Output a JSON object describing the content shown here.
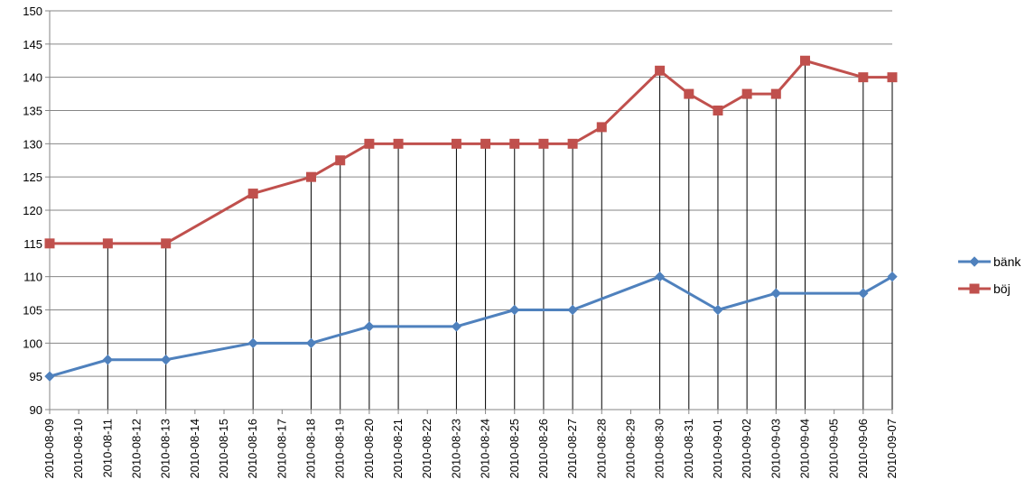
{
  "chart_data": {
    "type": "line",
    "x": [
      "2010-08-09",
      "2010-08-10",
      "2010-08-11",
      "2010-08-12",
      "2010-08-13",
      "2010-08-14",
      "2010-08-15",
      "2010-08-16",
      "2010-08-17",
      "2010-08-18",
      "2010-08-19",
      "2010-08-20",
      "2010-08-21",
      "2010-08-22",
      "2010-08-23",
      "2010-08-24",
      "2010-08-25",
      "2010-08-26",
      "2010-08-27",
      "2010-08-28",
      "2010-08-29",
      "2010-08-30",
      "2010-08-31",
      "2010-09-01",
      "2010-09-02",
      "2010-09-03",
      "2010-09-04",
      "2010-09-05",
      "2010-09-06",
      "2010-09-07"
    ],
    "series": [
      {
        "name": "bänk",
        "color": "#4F81BD",
        "marker": "diamond",
        "points": [
          {
            "x": "2010-08-09",
            "y": 95
          },
          {
            "x": "2010-08-11",
            "y": 97.5
          },
          {
            "x": "2010-08-13",
            "y": 97.5
          },
          {
            "x": "2010-08-16",
            "y": 100
          },
          {
            "x": "2010-08-18",
            "y": 100
          },
          {
            "x": "2010-08-20",
            "y": 102.5
          },
          {
            "x": "2010-08-23",
            "y": 102.5
          },
          {
            "x": "2010-08-25",
            "y": 105
          },
          {
            "x": "2010-08-27",
            "y": 105
          },
          {
            "x": "2010-08-30",
            "y": 110
          },
          {
            "x": "2010-09-01",
            "y": 105
          },
          {
            "x": "2010-09-03",
            "y": 107.5
          },
          {
            "x": "2010-09-06",
            "y": 107.5
          },
          {
            "x": "2010-09-07",
            "y": 110
          }
        ]
      },
      {
        "name": "böj",
        "color": "#C0504D",
        "marker": "square",
        "points": [
          {
            "x": "2010-08-09",
            "y": 115
          },
          {
            "x": "2010-08-11",
            "y": 115
          },
          {
            "x": "2010-08-13",
            "y": 115
          },
          {
            "x": "2010-08-16",
            "y": 122.5
          },
          {
            "x": "2010-08-18",
            "y": 125
          },
          {
            "x": "2010-08-19",
            "y": 127.5
          },
          {
            "x": "2010-08-20",
            "y": 130
          },
          {
            "x": "2010-08-21",
            "y": 130
          },
          {
            "x": "2010-08-23",
            "y": 130
          },
          {
            "x": "2010-08-24",
            "y": 130
          },
          {
            "x": "2010-08-25",
            "y": 130
          },
          {
            "x": "2010-08-26",
            "y": 130
          },
          {
            "x": "2010-08-27",
            "y": 130
          },
          {
            "x": "2010-08-28",
            "y": 132.5
          },
          {
            "x": "2010-08-30",
            "y": 141
          },
          {
            "x": "2010-08-31",
            "y": 137.5
          },
          {
            "x": "2010-09-01",
            "y": 135
          },
          {
            "x": "2010-09-02",
            "y": 137.5
          },
          {
            "x": "2010-09-03",
            "y": 137.5
          },
          {
            "x": "2010-09-04",
            "y": 142.5
          },
          {
            "x": "2010-09-06",
            "y": 140
          },
          {
            "x": "2010-09-07",
            "y": 140
          }
        ]
      }
    ],
    "ylim": [
      90,
      150
    ],
    "yticks": [
      90,
      95,
      100,
      105,
      110,
      115,
      120,
      125,
      130,
      135,
      140,
      145,
      150
    ],
    "title": "",
    "xlabel": "",
    "ylabel": "",
    "grid": "horizontal",
    "drop_lines": true,
    "legend": "right"
  }
}
